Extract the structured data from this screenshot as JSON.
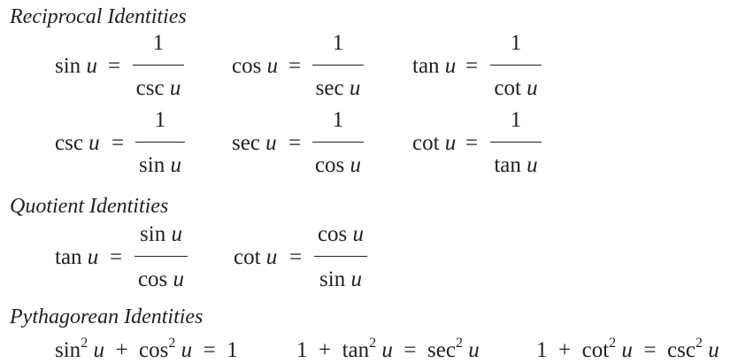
{
  "headings": {
    "reciprocal": "Reciprocal Identities",
    "quotient": "Quotient Identities",
    "pythagorean": "Pythagorean Identities"
  },
  "variable": "u",
  "equals": "=",
  "reciprocal": [
    {
      "lhs": "sin",
      "num": "1",
      "den": "csc"
    },
    {
      "lhs": "cos",
      "num": "1",
      "den": "sec"
    },
    {
      "lhs": "tan",
      "num": "1",
      "den": "cot"
    },
    {
      "lhs": "csc",
      "num": "1",
      "den": "sin"
    },
    {
      "lhs": "sec",
      "num": "1",
      "den": "cos"
    },
    {
      "lhs": "cot",
      "num": "1",
      "den": "tan"
    }
  ],
  "quotient": [
    {
      "lhs": "tan",
      "num": "sin",
      "den": "cos"
    },
    {
      "lhs": "cot",
      "num": "cos",
      "den": "sin"
    }
  ],
  "pythagorean": [
    {
      "t1": "sin",
      "e1": "2",
      "op": "+",
      "t2": "cos",
      "e2": "2",
      "rhs": "1"
    },
    {
      "c": "1",
      "op": "+",
      "t1": "tan",
      "e1": "2",
      "t2": "sec",
      "e2": "2"
    },
    {
      "c": "1",
      "op": "+",
      "t1": "cot",
      "e1": "2",
      "t2": "csc",
      "e2": "2"
    }
  ]
}
